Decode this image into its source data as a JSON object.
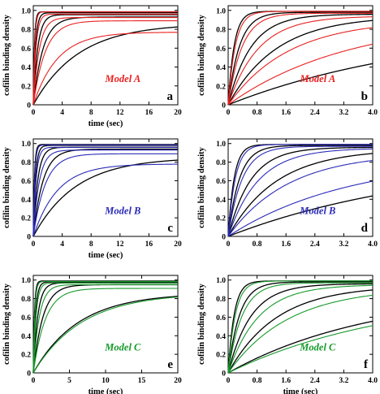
{
  "chart_data": [
    {
      "type": "line",
      "panel": "a",
      "model_label": "Model A",
      "accent": "#e8201f",
      "xlabel": "time (sec)",
      "ylabel": "cofilin binding density",
      "xlim": [
        0,
        20
      ],
      "ylim": [
        0,
        1.05
      ],
      "xticks": [
        0,
        4,
        8,
        12,
        16,
        20
      ],
      "xtick_labels": [
        "0",
        "4",
        "8",
        "12",
        "16",
        "20"
      ],
      "yticks": [
        0,
        0.2,
        0.4,
        0.6,
        0.8,
        1.0
      ],
      "ytick_labels": [
        "0",
        "0.2",
        "0.4",
        "0.6",
        "0.8",
        "1.0"
      ],
      "series": [
        {
          "plateau": 0.985,
          "rate": 6.0,
          "color": "#000000"
        },
        {
          "plateau": 0.975,
          "rate": 3.2,
          "color": "#000000"
        },
        {
          "plateau": 0.955,
          "rate": 1.6,
          "color": "#000000"
        },
        {
          "plateau": 0.93,
          "rate": 0.75,
          "color": "#000000"
        },
        {
          "plateau": 0.86,
          "rate": 0.16,
          "color": "#000000"
        },
        {
          "plateau": 0.985,
          "rate": 5.0,
          "color": "#e8201f"
        },
        {
          "plateau": 0.96,
          "rate": 2.6,
          "color": "#e8201f"
        },
        {
          "plateau": 0.925,
          "rate": 1.2,
          "color": "#e8201f"
        },
        {
          "plateau": 0.89,
          "rate": 0.6,
          "color": "#e8201f"
        },
        {
          "plateau": 0.77,
          "rate": 0.3,
          "color": "#e8201f"
        }
      ]
    },
    {
      "type": "line",
      "panel": "b",
      "model_label": "Model A",
      "accent": "#e8201f",
      "xlabel": "",
      "ylabel": "cofilin binding density",
      "xlim": [
        0,
        4
      ],
      "ylim": [
        0,
        1.05
      ],
      "xticks": [
        0,
        0.8,
        1.6,
        2.4,
        3.2,
        4.0
      ],
      "xtick_labels": [
        "0",
        "0.8",
        "1.6",
        "2.4",
        "3.2",
        "4.0"
      ],
      "yticks": [
        0,
        0.2,
        0.4,
        0.6,
        0.8,
        1.0
      ],
      "ytick_labels": [
        "0",
        "0.2",
        "0.4",
        "0.6",
        "0.8",
        "1.0"
      ],
      "series": [
        {
          "plateau": 0.99,
          "rate": 6.0,
          "color": "#000000"
        },
        {
          "plateau": 0.98,
          "rate": 3.2,
          "color": "#000000"
        },
        {
          "plateau": 0.96,
          "rate": 1.6,
          "color": "#000000"
        },
        {
          "plateau": 0.94,
          "rate": 0.75,
          "color": "#000000"
        },
        {
          "plateau": 0.85,
          "rate": 0.18,
          "color": "#000000"
        },
        {
          "plateau": 0.99,
          "rate": 5.0,
          "color": "#e8201f"
        },
        {
          "plateau": 0.97,
          "rate": 2.6,
          "color": "#e8201f"
        },
        {
          "plateau": 0.94,
          "rate": 1.2,
          "color": "#e8201f"
        },
        {
          "plateau": 0.9,
          "rate": 0.6,
          "color": "#e8201f"
        },
        {
          "plateau": 0.92,
          "rate": 0.3,
          "color": "#e8201f"
        }
      ]
    },
    {
      "type": "line",
      "panel": "c",
      "model_label": "Model B",
      "accent": "#2a2ab8",
      "xlabel": "time (sec)",
      "ylabel": "cofilin binding density",
      "xlim": [
        0,
        20
      ],
      "ylim": [
        0,
        1.05
      ],
      "xticks": [
        0,
        4,
        8,
        12,
        16,
        20
      ],
      "xtick_labels": [
        "0",
        "4",
        "8",
        "12",
        "16",
        "20"
      ],
      "yticks": [
        0,
        0.2,
        0.4,
        0.6,
        0.8,
        1.0
      ],
      "ytick_labels": [
        "0",
        "0.2",
        "0.4",
        "0.6",
        "0.8",
        "1.0"
      ],
      "series": [
        {
          "plateau": 0.99,
          "rate": 6.0,
          "color": "#000000"
        },
        {
          "plateau": 0.98,
          "rate": 3.2,
          "color": "#000000"
        },
        {
          "plateau": 0.96,
          "rate": 1.6,
          "color": "#000000"
        },
        {
          "plateau": 0.94,
          "rate": 0.75,
          "color": "#000000"
        },
        {
          "plateau": 0.85,
          "rate": 0.17,
          "color": "#000000"
        },
        {
          "plateau": 0.985,
          "rate": 5.0,
          "color": "#2a2ab8"
        },
        {
          "plateau": 0.96,
          "rate": 2.6,
          "color": "#2a2ab8"
        },
        {
          "plateau": 0.93,
          "rate": 1.2,
          "color": "#2a2ab8"
        },
        {
          "plateau": 0.89,
          "rate": 0.6,
          "color": "#2a2ab8"
        },
        {
          "plateau": 0.78,
          "rate": 0.3,
          "color": "#2a2ab8"
        }
      ]
    },
    {
      "type": "line",
      "panel": "d",
      "model_label": "Model B",
      "accent": "#2a2ab8",
      "xlabel": "",
      "ylabel": "cofilin binding density",
      "xlim": [
        0,
        4
      ],
      "ylim": [
        0,
        1.05
      ],
      "xticks": [
        0,
        0.8,
        1.6,
        2.4,
        3.2,
        4.0
      ],
      "xtick_labels": [
        "0",
        "0.8",
        "1.6",
        "2.4",
        "3.2",
        "4.0"
      ],
      "yticks": [
        0,
        0.2,
        0.4,
        0.6,
        0.8,
        1.0
      ],
      "ytick_labels": [
        "0",
        "0.2",
        "0.4",
        "0.6",
        "0.8",
        "1.0"
      ],
      "series": [
        {
          "plateau": 0.99,
          "rate": 6.0,
          "color": "#000000"
        },
        {
          "plateau": 0.98,
          "rate": 3.2,
          "color": "#000000"
        },
        {
          "plateau": 0.96,
          "rate": 1.6,
          "color": "#000000"
        },
        {
          "plateau": 0.94,
          "rate": 0.75,
          "color": "#000000"
        },
        {
          "plateau": 0.85,
          "rate": 0.18,
          "color": "#000000"
        },
        {
          "plateau": 0.99,
          "rate": 5.0,
          "color": "#2a2ab8"
        },
        {
          "plateau": 0.97,
          "rate": 2.6,
          "color": "#2a2ab8"
        },
        {
          "plateau": 0.95,
          "rate": 1.2,
          "color": "#2a2ab8"
        },
        {
          "plateau": 0.9,
          "rate": 0.6,
          "color": "#2a2ab8"
        },
        {
          "plateau": 0.85,
          "rate": 0.3,
          "color": "#2a2ab8"
        }
      ]
    },
    {
      "type": "line",
      "panel": "e",
      "model_label": "Model C",
      "accent": "#169a2a",
      "xlabel": "time (sec)",
      "ylabel": "cofilin binding density",
      "xlim": [
        0,
        20
      ],
      "ylim": [
        0,
        1.05
      ],
      "xticks": [
        0,
        5,
        10,
        15,
        20
      ],
      "xtick_labels": [
        "0",
        "5",
        "10",
        "15",
        "20"
      ],
      "yticks": [
        0,
        0.2,
        0.4,
        0.6,
        0.8,
        1.0
      ],
      "ytick_labels": [
        "0",
        "0.2",
        "0.4",
        "0.6",
        "0.8",
        "1.0"
      ],
      "series": [
        {
          "plateau": 0.99,
          "rate": 6.0,
          "color": "#000000"
        },
        {
          "plateau": 0.98,
          "rate": 3.2,
          "color": "#000000"
        },
        {
          "plateau": 0.97,
          "rate": 1.6,
          "color": "#000000"
        },
        {
          "plateau": 0.95,
          "rate": 0.75,
          "color": "#000000"
        },
        {
          "plateau": 0.86,
          "rate": 0.16,
          "color": "#000000"
        },
        {
          "plateau": 0.985,
          "rate": 5.0,
          "color": "#169a2a"
        },
        {
          "plateau": 0.97,
          "rate": 2.6,
          "color": "#169a2a"
        },
        {
          "plateau": 0.95,
          "rate": 1.2,
          "color": "#169a2a"
        },
        {
          "plateau": 0.91,
          "rate": 0.6,
          "color": "#169a2a"
        },
        {
          "plateau": 0.86,
          "rate": 0.15,
          "color": "#169a2a"
        }
      ]
    },
    {
      "type": "line",
      "panel": "f",
      "model_label": "Model C",
      "accent": "#169a2a",
      "xlabel": "time (sec)",
      "ylabel": "cofilin binding density",
      "xlim": [
        0,
        4
      ],
      "ylim": [
        0,
        1.05
      ],
      "xticks": [
        0,
        0.8,
        1.6,
        2.4,
        3.2,
        4.0
      ],
      "xtick_labels": [
        "0",
        "0.8",
        "1.6",
        "2.4",
        "3.2",
        "4.0"
      ],
      "yticks": [
        0,
        0.2,
        0.4,
        0.6,
        0.8,
        1.0
      ],
      "ytick_labels": [
        "0",
        "0.2",
        "0.4",
        "0.6",
        "0.8",
        "1.0"
      ],
      "series": [
        {
          "plateau": 0.99,
          "rate": 6.0,
          "color": "#000000"
        },
        {
          "plateau": 0.98,
          "rate": 3.2,
          "color": "#000000"
        },
        {
          "plateau": 0.96,
          "rate": 1.6,
          "color": "#000000"
        },
        {
          "plateau": 0.94,
          "rate": 0.75,
          "color": "#000000"
        },
        {
          "plateau": 0.88,
          "rate": 0.25,
          "color": "#000000"
        },
        {
          "plateau": 0.99,
          "rate": 5.0,
          "color": "#169a2a"
        },
        {
          "plateau": 0.97,
          "rate": 2.6,
          "color": "#169a2a"
        },
        {
          "plateau": 0.95,
          "rate": 1.2,
          "color": "#169a2a"
        },
        {
          "plateau": 0.92,
          "rate": 0.6,
          "color": "#169a2a"
        },
        {
          "plateau": 0.87,
          "rate": 0.22,
          "color": "#169a2a"
        }
      ]
    }
  ]
}
